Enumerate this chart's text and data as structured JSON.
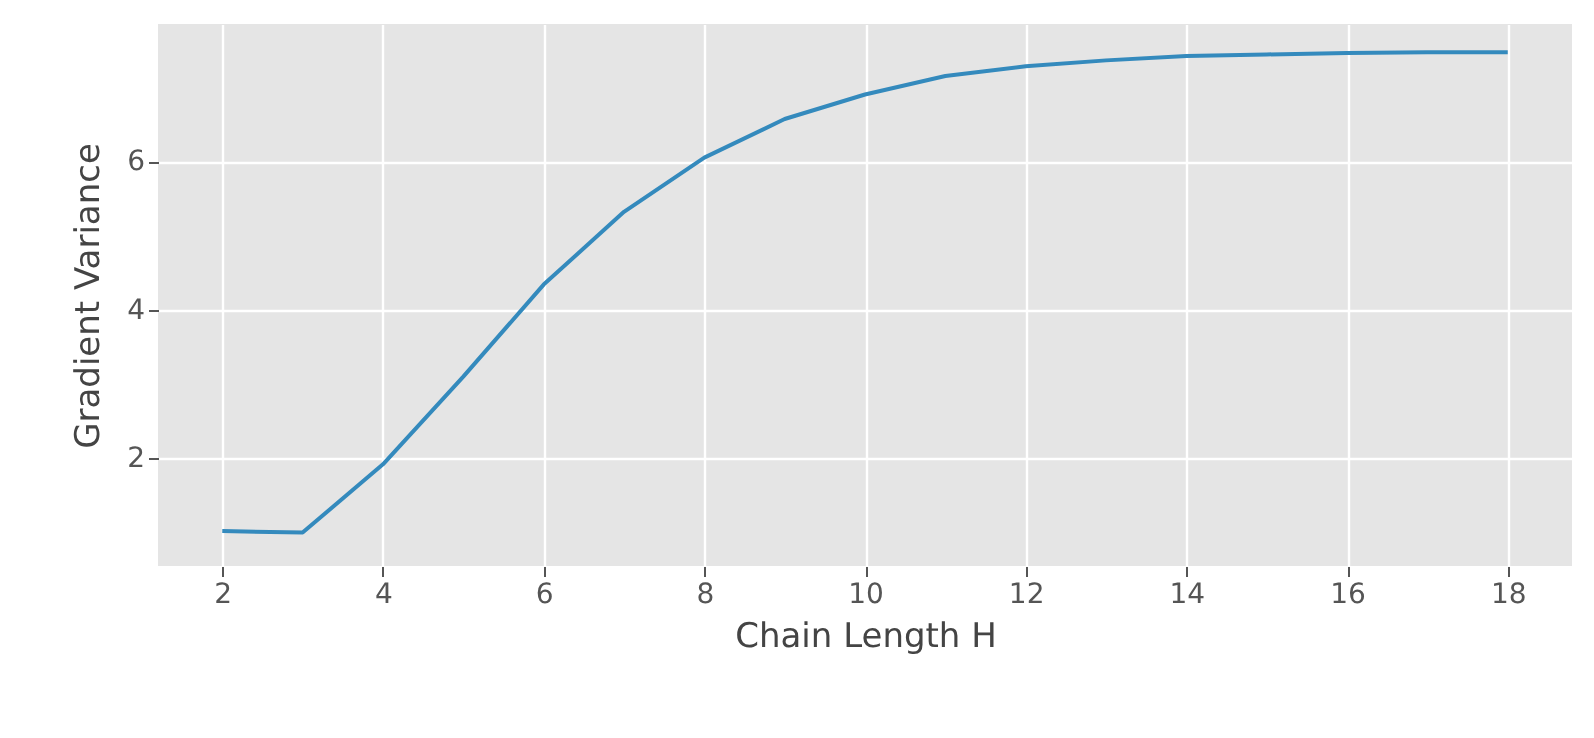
{
  "chart_data": {
    "type": "line",
    "xlabel": "Chain Length H",
    "ylabel": "Gradient Variance",
    "x": [
      2,
      3,
      4,
      5,
      6,
      7,
      8,
      9,
      10,
      11,
      12,
      13,
      14,
      15,
      16,
      17,
      18
    ],
    "series": [
      {
        "color": "#348abd",
        "values": [
          1.02,
          1.0,
          1.92,
          3.1,
          4.34,
          5.32,
          6.05,
          6.57,
          6.9,
          7.15,
          7.28,
          7.36,
          7.42,
          7.44,
          7.46,
          7.47,
          7.47
        ]
      }
    ],
    "xlim": [
      1.2,
      18.8
    ],
    "xticks": [
      2,
      4,
      6,
      8,
      10,
      12,
      14,
      16,
      18
    ],
    "ylim": [
      0.55,
      7.85
    ],
    "yticks": [
      2,
      4,
      6
    ],
    "grid": true,
    "marker": "none",
    "line_style": "solid"
  }
}
